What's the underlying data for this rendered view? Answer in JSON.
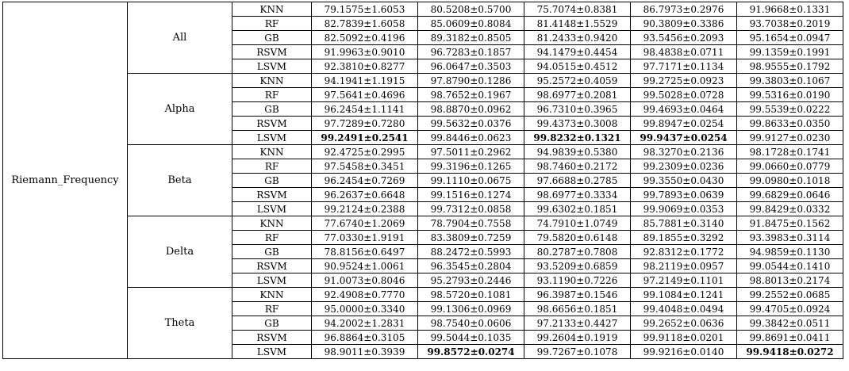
{
  "table": {
    "feature": "Riemann_Frequency",
    "groups": [
      {
        "band": "All",
        "rows": [
          {
            "clf": "KNN",
            "vals": [
              "79.1575±1.6053",
              "80.5208±0.5700",
              "75.7074±0.8381",
              "86.7973±0.2976",
              "91.9668±0.1331"
            ],
            "bold": [
              false,
              false,
              false,
              false,
              false
            ]
          },
          {
            "clf": "RF",
            "vals": [
              "82.7839±1.6058",
              "85.0609±0.8084",
              "81.4148±1.5529",
              "90.3809±0.3386",
              "93.7038±0.2019"
            ],
            "bold": [
              false,
              false,
              false,
              false,
              false
            ]
          },
          {
            "clf": "GB",
            "vals": [
              "82.5092±0.4196",
              "89.3182±0.8505",
              "81.2433±0.9420",
              "93.5456±0.2093",
              "95.1654±0.0947"
            ],
            "bold": [
              false,
              false,
              false,
              false,
              false
            ]
          },
          {
            "clf": "RSVM",
            "vals": [
              "91.9963±0.9010",
              "96.7283±0.1857",
              "94.1479±0.4454",
              "98.4838±0.0711",
              "99.1359±0.1991"
            ],
            "bold": [
              false,
              false,
              false,
              false,
              false
            ]
          },
          {
            "clf": "LSVM",
            "vals": [
              "92.3810±0.8277",
              "96.0647±0.3503",
              "94.0515±0.4512",
              "97.7171±0.1134",
              "98.9555±0.1792"
            ],
            "bold": [
              false,
              false,
              false,
              false,
              false
            ]
          }
        ]
      },
      {
        "band": "Alpha",
        "rows": [
          {
            "clf": "KNN",
            "vals": [
              "94.1941±1.1915",
              "97.8790±0.1286",
              "95.2572±0.4059",
              "99.2725±0.0923",
              "99.3803±0.1067"
            ],
            "bold": [
              false,
              false,
              false,
              false,
              false
            ]
          },
          {
            "clf": "RF",
            "vals": [
              "97.5641±0.4696",
              "98.7652±0.1967",
              "98.6977±0.2081",
              "99.5028±0.0728",
              "99.5316±0.0190"
            ],
            "bold": [
              false,
              false,
              false,
              false,
              false
            ]
          },
          {
            "clf": "GB",
            "vals": [
              "96.2454±1.1141",
              "98.8870±0.0962",
              "96.7310±0.3965",
              "99.4693±0.0464",
              "99.5539±0.0222"
            ],
            "bold": [
              false,
              false,
              false,
              false,
              false
            ]
          },
          {
            "clf": "RSVM",
            "vals": [
              "97.7289±0.7280",
              "99.5632±0.0376",
              "99.4373±0.3008",
              "99.8947±0.0254",
              "99.8633±0.0350"
            ],
            "bold": [
              false,
              false,
              false,
              false,
              false
            ]
          },
          {
            "clf": "LSVM",
            "vals": [
              "99.2491±0.2541",
              "99.8446±0.0623",
              "99.8232±0.1321",
              "99.9437±0.0254",
              "99.9127±0.0230"
            ],
            "bold": [
              true,
              false,
              true,
              true,
              false
            ]
          }
        ]
      },
      {
        "band": "Beta",
        "rows": [
          {
            "clf": "KNN",
            "vals": [
              "92.4725±0.2995",
              "97.5011±0.2962",
              "94.9839±0.5380",
              "98.3270±0.2136",
              "98.1728±0.1741"
            ],
            "bold": [
              false,
              false,
              false,
              false,
              false
            ]
          },
          {
            "clf": "RF",
            "vals": [
              "97.5458±0.3451",
              "99.3196±0.1265",
              "98.7460±0.2172",
              "99.2309±0.0236",
              "99.0660±0.0779"
            ],
            "bold": [
              false,
              false,
              false,
              false,
              false
            ]
          },
          {
            "clf": "GB",
            "vals": [
              "96.2454±0.7269",
              "99.1110±0.0675",
              "97.6688±0.2785",
              "99.3550±0.0430",
              "99.0980±0.1018"
            ],
            "bold": [
              false,
              false,
              false,
              false,
              false
            ]
          },
          {
            "clf": "RSVM",
            "vals": [
              "96.2637±0.6648",
              "99.1516±0.1274",
              "98.6977±0.3334",
              "99.7893±0.0639",
              "99.6829±0.0646"
            ],
            "bold": [
              false,
              false,
              false,
              false,
              false
            ]
          },
          {
            "clf": "LSVM",
            "vals": [
              "99.2124±0.2388",
              "99.7312±0.0858",
              "99.6302±0.1851",
              "99.9069±0.0353",
              "99.8429±0.0332"
            ],
            "bold": [
              false,
              false,
              false,
              false,
              false
            ]
          }
        ]
      },
      {
        "band": "Delta",
        "rows": [
          {
            "clf": "KNN",
            "vals": [
              "77.6740±1.2069",
              "78.7904±0.7558",
              "74.7910±1.0749",
              "85.7881±0.3140",
              "91.8475±0.1562"
            ],
            "bold": [
              false,
              false,
              false,
              false,
              false
            ]
          },
          {
            "clf": "RF",
            "vals": [
              "77.0330±1.9191",
              "83.3809±0.7259",
              "79.5820±0.6148",
              "89.1855±0.3292",
              "93.3983±0.3114"
            ],
            "bold": [
              false,
              false,
              false,
              false,
              false
            ]
          },
          {
            "clf": "GB",
            "vals": [
              "78.8156±0.6497",
              "88.2472±0.5993",
              "80.2787±0.7808",
              "92.8312±0.1772",
              "94.9859±0.1130"
            ],
            "bold": [
              false,
              false,
              false,
              false,
              false
            ]
          },
          {
            "clf": "RSVM",
            "vals": [
              "90.9524±1.0061",
              "96.3545±0.2804",
              "93.5209±0.6859",
              "98.2119±0.0957",
              "99.0544±0.1410"
            ],
            "bold": [
              false,
              false,
              false,
              false,
              false
            ]
          },
          {
            "clf": "LSVM",
            "vals": [
              "91.0073±0.8046",
              "95.2793±0.2446",
              "93.1190±0.7226",
              "97.2149±0.1101",
              "98.8013±0.2174"
            ],
            "bold": [
              false,
              false,
              false,
              false,
              false
            ]
          }
        ]
      },
      {
        "band": "Theta",
        "rows": [
          {
            "clf": "KNN",
            "vals": [
              "92.4908±0.7770",
              "98.5720±0.1081",
              "96.3987±0.1546",
              "99.1084±0.1241",
              "99.2552±0.0685"
            ],
            "bold": [
              false,
              false,
              false,
              false,
              false
            ]
          },
          {
            "clf": "RF",
            "vals": [
              "95.0000±0.3340",
              "99.1306±0.0969",
              "98.6656±0.1851",
              "99.4048±0.0494",
              "99.4705±0.0924"
            ],
            "bold": [
              false,
              false,
              false,
              false,
              false
            ]
          },
          {
            "clf": "GB",
            "vals": [
              "94.2002±1.2831",
              "98.7540±0.0606",
              "97.2133±0.4427",
              "99.2652±0.0636",
              "99.3842±0.0511"
            ],
            "bold": [
              false,
              false,
              false,
              false,
              false
            ]
          },
          {
            "clf": "RSVM",
            "vals": [
              "96.8864±0.3105",
              "99.5044±0.1035",
              "99.2604±0.1919",
              "99.9118±0.0201",
              "99.8691±0.0411"
            ],
            "bold": [
              false,
              false,
              false,
              false,
              false
            ]
          },
          {
            "clf": "LSVM",
            "vals": [
              "98.9011±0.3939",
              "99.8572±0.0274",
              "99.7267±0.1078",
              "99.9216±0.0140",
              "99.9418±0.0272"
            ],
            "bold": [
              false,
              true,
              false,
              false,
              true
            ]
          }
        ]
      }
    ]
  }
}
